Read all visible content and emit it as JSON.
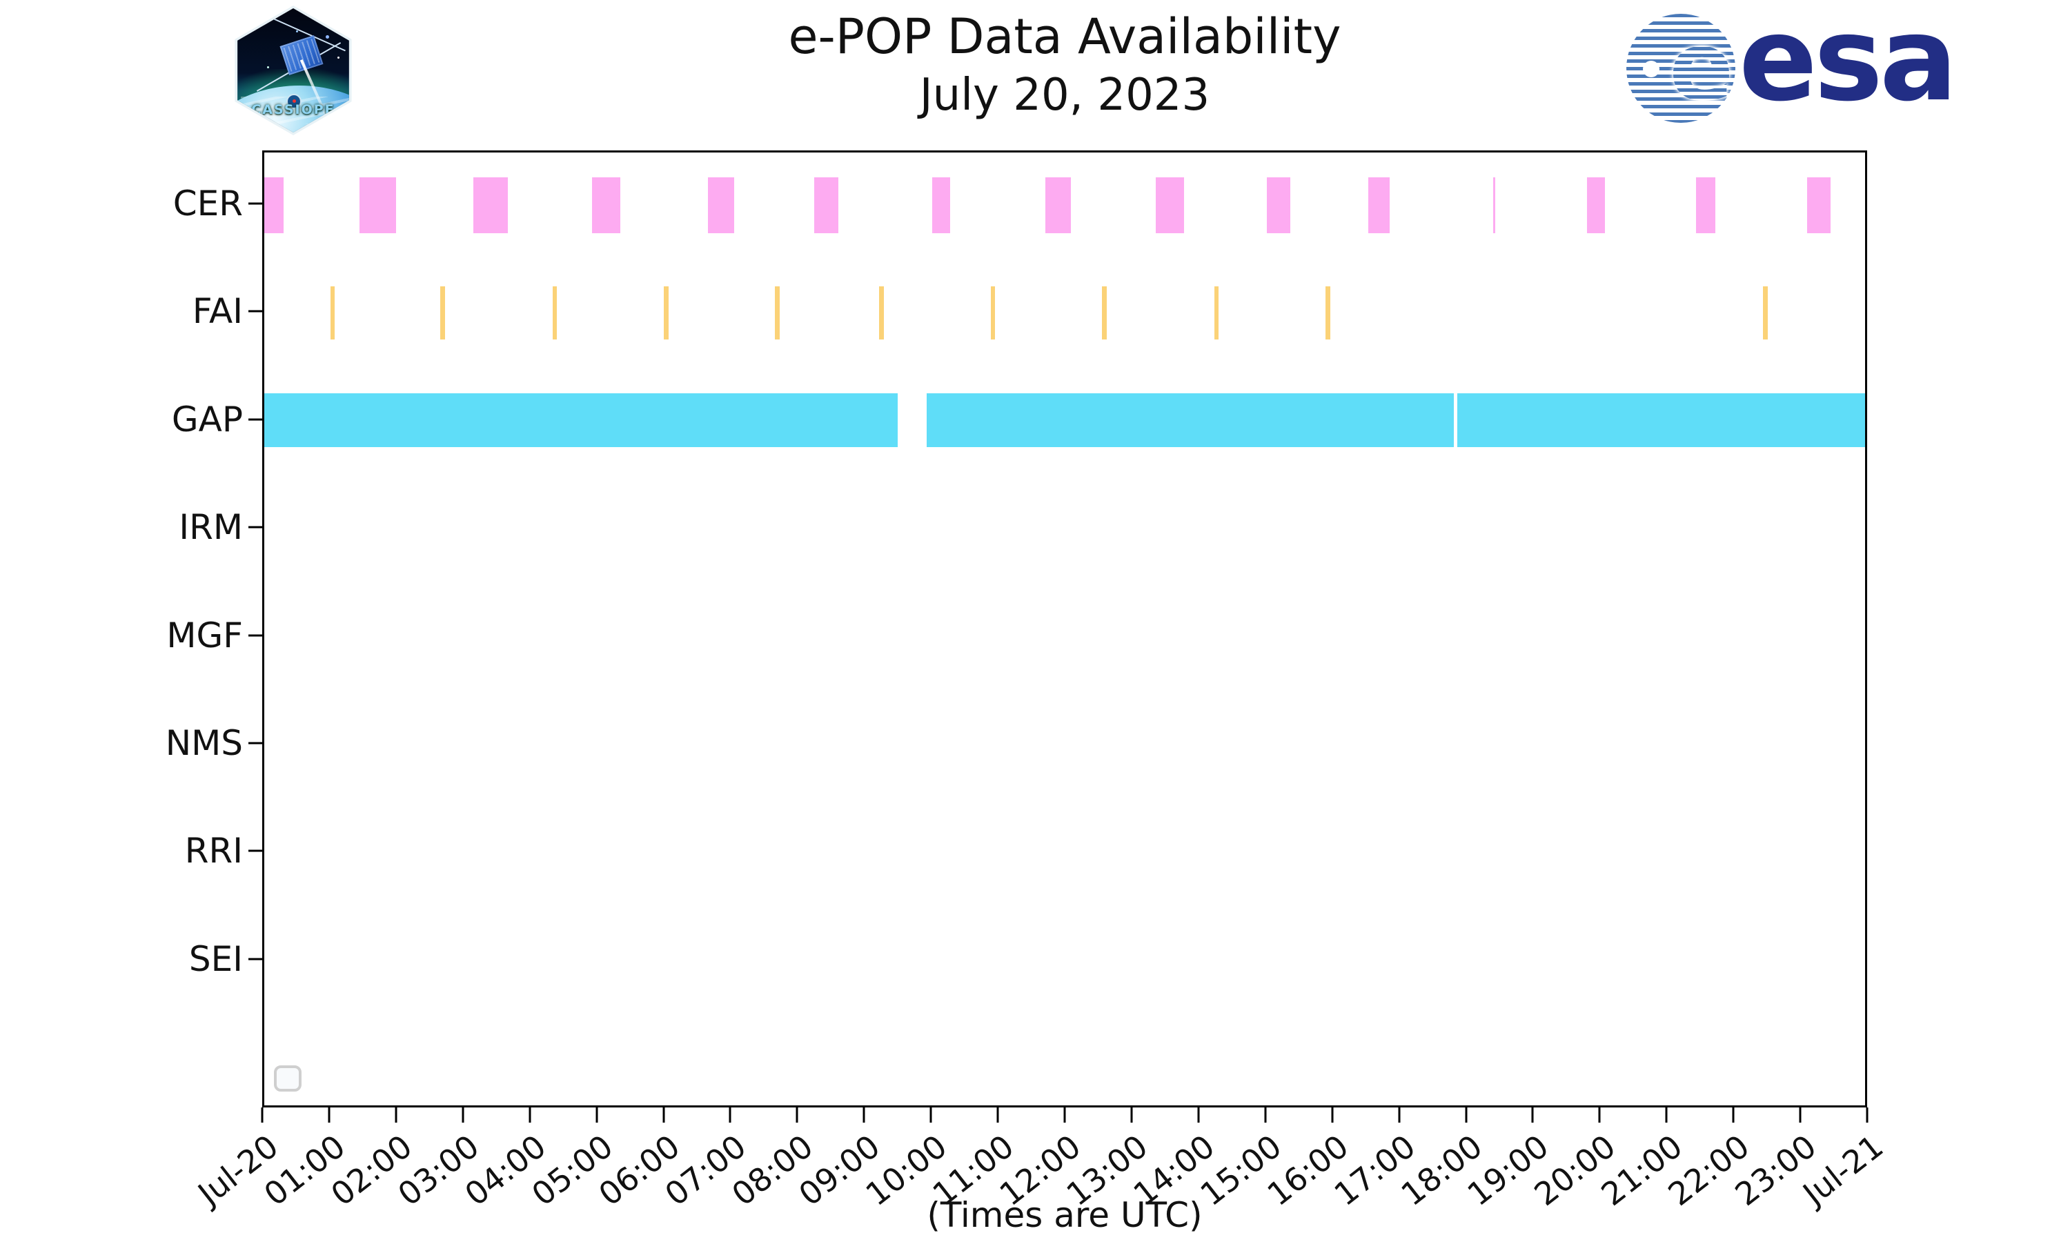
{
  "header": {
    "title_line1": "e-POP Data Availability",
    "title_line2": "July 20, 2023",
    "cassiope_label": "CASSIOPE",
    "esa_wordmark": "esa",
    "esa_e": "e"
  },
  "branding": {
    "esa_navy": "#222e85",
    "esa_stripe_blue": "#4a79b8",
    "patch_text_blue": "#8fd4f2"
  },
  "chart_data": {
    "type": "timeline",
    "title": "e-POP Data Availability",
    "subtitle": "July 20, 2023",
    "xlabel": "(Times are UTC)",
    "x_hours": 24,
    "x_start_label": "Jul-20",
    "x_end_label": "Jul-21",
    "xtick_labels": [
      "Jul-20",
      "01:00",
      "02:00",
      "03:00",
      "04:00",
      "05:00",
      "06:00",
      "07:00",
      "08:00",
      "09:00",
      "10:00",
      "11:00",
      "12:00",
      "13:00",
      "14:00",
      "15:00",
      "16:00",
      "17:00",
      "18:00",
      "19:00",
      "20:00",
      "21:00",
      "22:00",
      "23:00",
      "Jul-21"
    ],
    "rows": [
      "CER",
      "FAI",
      "GAP",
      "IRM",
      "MGF",
      "NMS",
      "RRI",
      "SEI"
    ],
    "row_layout": {
      "first_row_center_pct": 5.55,
      "row_pitch_pct": 11.276
    },
    "series": [
      {
        "row": "CER",
        "color": "#fdabf1",
        "height_pct": 5.9,
        "intervals": [
          [
            0.0,
            0.29
          ],
          [
            1.43,
            1.98
          ],
          [
            3.13,
            3.65
          ],
          [
            4.91,
            5.34
          ],
          [
            6.65,
            7.05
          ],
          [
            8.24,
            8.61
          ],
          [
            10.01,
            10.28
          ],
          [
            11.71,
            12.09
          ],
          [
            13.37,
            13.79
          ],
          [
            15.03,
            15.38
          ],
          [
            16.55,
            16.87
          ],
          [
            18.42,
            18.46
          ],
          [
            19.83,
            20.1
          ],
          [
            21.47,
            21.76
          ],
          [
            23.13,
            23.48
          ]
        ]
      },
      {
        "row": "FAI",
        "color": "#fbd277",
        "height_pct": 5.6,
        "intervals": [
          [
            0.99,
            1.06
          ],
          [
            2.64,
            2.71
          ],
          [
            4.32,
            4.39
          ],
          [
            5.99,
            6.06
          ],
          [
            7.66,
            7.73
          ],
          [
            9.22,
            9.29
          ],
          [
            10.89,
            10.96
          ],
          [
            12.56,
            12.63
          ],
          [
            14.24,
            14.31
          ],
          [
            15.91,
            15.98
          ],
          [
            22.47,
            22.54
          ]
        ]
      },
      {
        "row": "GAP",
        "color": "#5fddf8",
        "height_pct": 5.6,
        "intervals": [
          [
            0.0,
            9.5
          ],
          [
            9.93,
            17.83
          ],
          [
            17.89,
            24.0
          ]
        ]
      },
      {
        "row": "IRM",
        "color": "#ffffff",
        "height_pct": 5.6,
        "intervals": []
      },
      {
        "row": "MGF",
        "color": "#ffffff",
        "height_pct": 5.6,
        "intervals": []
      },
      {
        "row": "NMS",
        "color": "#ffffff",
        "height_pct": 5.6,
        "intervals": []
      },
      {
        "row": "RRI",
        "color": "#ffffff",
        "height_pct": 5.6,
        "intervals": []
      },
      {
        "row": "SEI",
        "color": "#ffffff",
        "height_pct": 5.6,
        "intervals": []
      }
    ],
    "legend": {
      "visible": true,
      "entries": []
    },
    "grid": false,
    "legend_position": "lower-left"
  }
}
